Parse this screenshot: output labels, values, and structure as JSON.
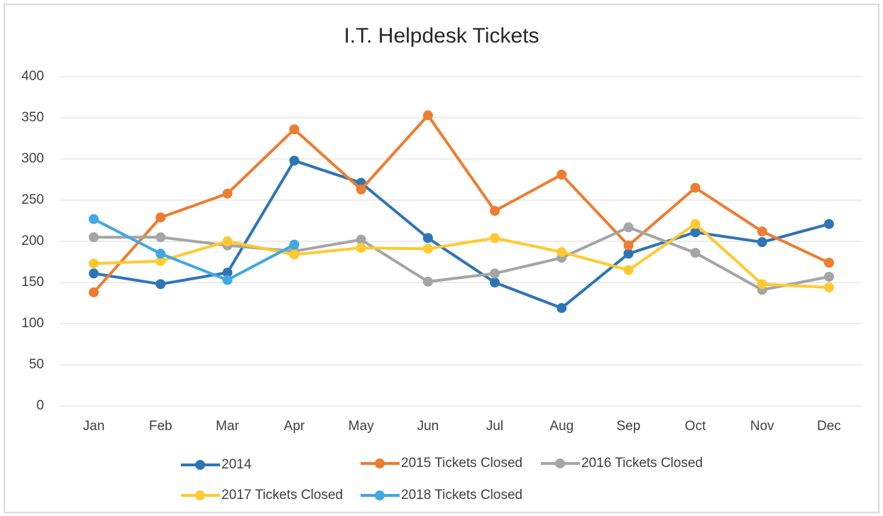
{
  "chart_data": {
    "type": "line",
    "title": "I.T. Helpdesk Tickets",
    "categories": [
      "Jan",
      "Feb",
      "Mar",
      "Apr",
      "May",
      "Jun",
      "Jul",
      "Aug",
      "Sep",
      "Oct",
      "Nov",
      "Dec"
    ],
    "series": [
      {
        "name": "2014",
        "color": "#2e75b6",
        "values": [
          161,
          148,
          162,
          298,
          271,
          204,
          150,
          119,
          185,
          211,
          199,
          221
        ]
      },
      {
        "name": "2015 Tickets Closed",
        "color": "#ed7d31",
        "values": [
          138,
          229,
          258,
          336,
          263,
          353,
          237,
          281,
          195,
          265,
          212,
          174
        ]
      },
      {
        "name": "2016 Tickets Closed",
        "color": "#a5a5a5",
        "values": [
          205,
          205,
          195,
          188,
          202,
          151,
          161,
          180,
          217,
          186,
          141,
          157
        ]
      },
      {
        "name": "2017 Tickets Closed",
        "color": "#ffc930",
        "values": [
          173,
          176,
          200,
          184,
          192,
          191,
          204,
          187,
          165,
          221,
          148,
          144
        ]
      },
      {
        "name": "2018 Tickets Closed",
        "color": "#41a8e2",
        "values": [
          227,
          185,
          153,
          196,
          null,
          null,
          null,
          null,
          null,
          null,
          null,
          null
        ]
      }
    ],
    "ylim": [
      0,
      400
    ],
    "yticks": [
      0,
      50,
      100,
      150,
      200,
      250,
      300,
      350,
      400
    ],
    "grid": true
  }
}
